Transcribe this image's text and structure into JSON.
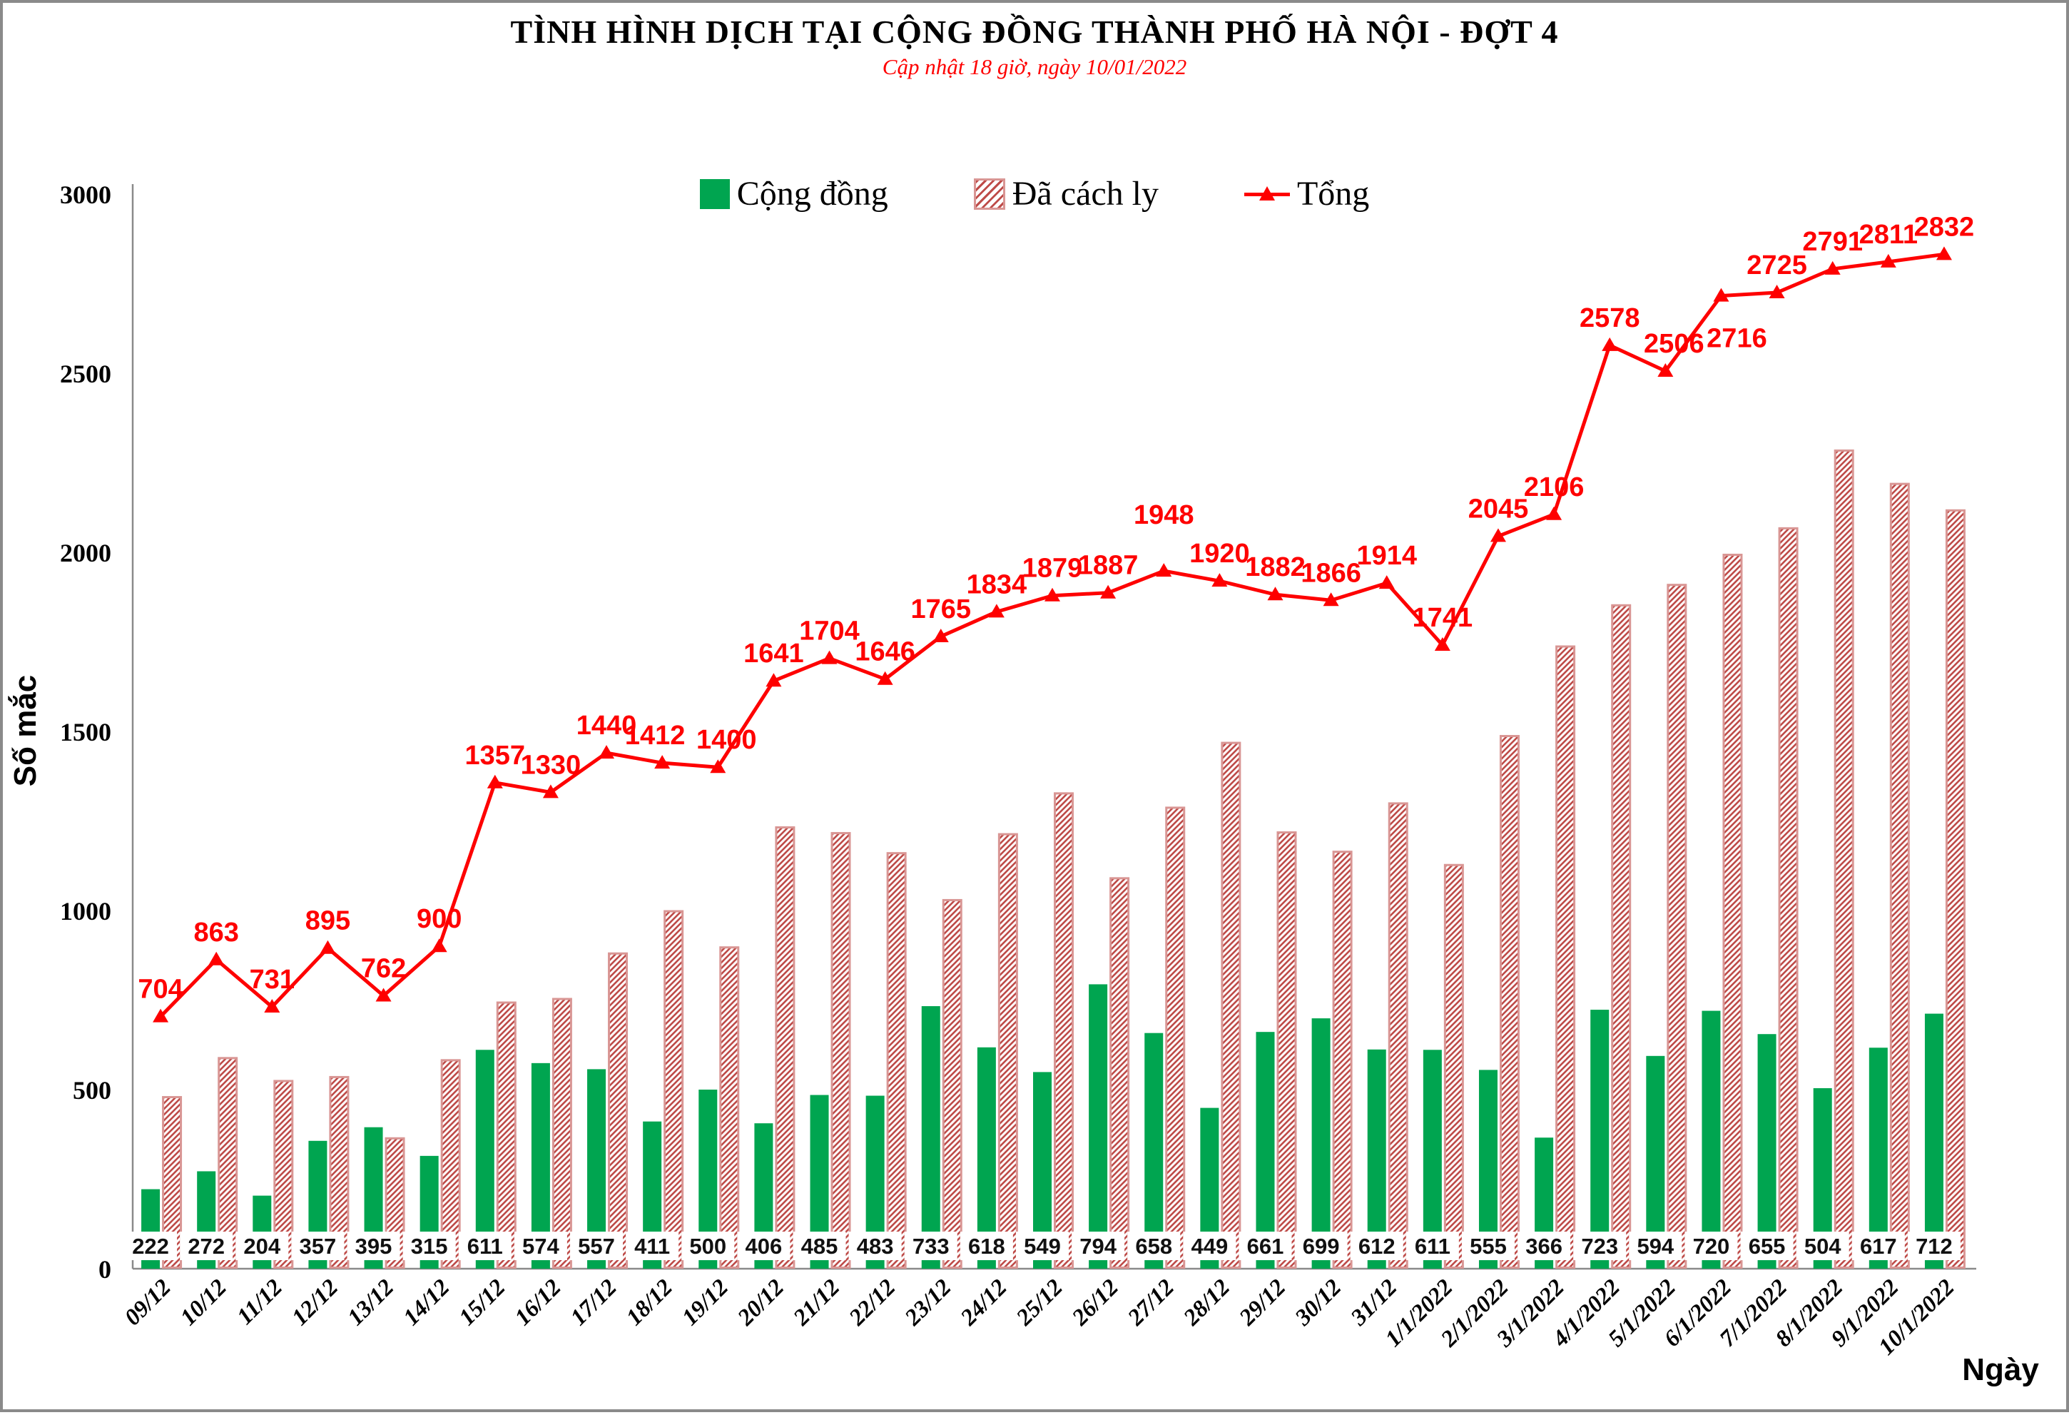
{
  "header": {
    "title": "TÌNH HÌNH DỊCH TẠI CỘNG ĐỒNG THÀNH PHỐ HÀ NỘI - ĐỢT 4",
    "subtitle": "Cập nhật 18 giờ, ngày 10/01/2022"
  },
  "legend": {
    "items": [
      {
        "label": "Cộng đồng",
        "swatch": "green-square"
      },
      {
        "label": "Đã cách ly",
        "swatch": "red-hatched-square"
      },
      {
        "label": "Tổng",
        "swatch": "red-line-triangle"
      }
    ]
  },
  "axes": {
    "y_label": "Số mắc",
    "x_label": "Ngày"
  },
  "colors": {
    "community_green": "#00A550",
    "hatch_stripe": "#BE4B48",
    "hatch_border": "#D99694",
    "line_red": "#FE0000",
    "axis_gray": "#8A8A8A"
  },
  "chart_data": {
    "type": "combo",
    "title": "TÌNH HÌNH DỊCH TẠI CỘNG ĐỒNG THÀNH PHỐ HÀ NỘI - ĐỢT 4",
    "subtitle": "Cập nhật 18 giờ, ngày 10/01/2022",
    "xlabel": "Ngày",
    "ylabel": "Số mắc",
    "ylim": [
      0,
      3000
    ],
    "ytick_step": 500,
    "grid": false,
    "legend_position": "top-center",
    "categories": [
      "09/12",
      "10/12",
      "11/12",
      "12/12",
      "13/12",
      "14/12",
      "15/12",
      "16/12",
      "17/12",
      "18/12",
      "19/12",
      "20/12",
      "21/12",
      "22/12",
      "23/12",
      "24/12",
      "25/12",
      "26/12",
      "27/12",
      "28/12",
      "29/12",
      "30/12",
      "31/12",
      "1/1/2022",
      "2/1/2022",
      "3/1/2022",
      "4/1/2022",
      "5/1/2022",
      "6/1/2022",
      "7/1/2022",
      "8/1/2022",
      "9/1/2022",
      "10/1/2022"
    ],
    "series": [
      {
        "name": "Cộng đồng",
        "type": "bar",
        "style": "solid-green",
        "value_labels": "shown-at-bar-base",
        "values": [
          222,
          272,
          204,
          357,
          395,
          315,
          611,
          574,
          557,
          411,
          500,
          406,
          485,
          483,
          733,
          618,
          549,
          794,
          658,
          449,
          661,
          699,
          612,
          611,
          555,
          366,
          723,
          594,
          720,
          655,
          504,
          617,
          712
        ]
      },
      {
        "name": "Đã cách ly",
        "type": "bar",
        "style": "red-diagonal-hatch",
        "value_labels": "none",
        "values": [
          482,
          591,
          527,
          538,
          367,
          585,
          746,
          756,
          883,
          1001,
          900,
          1235,
          1219,
          1163,
          1032,
          1216,
          1330,
          1093,
          1290,
          1471,
          1221,
          1167,
          1302,
          1130,
          1490,
          1740,
          1855,
          1912,
          1996,
          2070,
          2287,
          2194,
          2120
        ]
      },
      {
        "name": "Tổng",
        "type": "line",
        "marker": "triangle",
        "value_labels": "shown-above-points",
        "values": [
          704,
          863,
          731,
          895,
          762,
          900,
          1357,
          1330,
          1440,
          1412,
          1400,
          1641,
          1704,
          1646,
          1765,
          1834,
          1879,
          1887,
          1948,
          1920,
          1882,
          1866,
          1914,
          1741,
          2045,
          2106,
          2578,
          2506,
          2716,
          2725,
          2791,
          2811,
          2832
        ]
      }
    ]
  }
}
